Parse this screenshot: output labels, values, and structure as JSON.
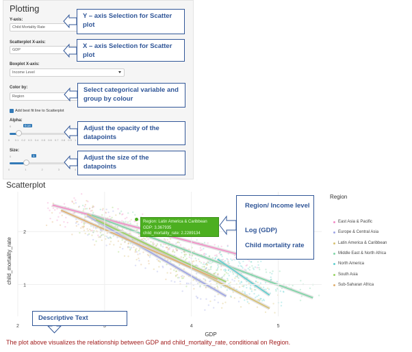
{
  "panel": {
    "title": "Plotting",
    "y_axis": {
      "label": "Y-axis:",
      "value": "Child Mortality Rate"
    },
    "scatter_x": {
      "label": "Scatterplot X-axis:",
      "value": "GDP"
    },
    "boxplot_x": {
      "label": "Boxplot X-axis:",
      "value": "Income Level"
    },
    "color_by": {
      "label": "Color by:",
      "value": "Region"
    },
    "checkbox": {
      "label": "Add best fit line to Scatterplot",
      "checked": true
    },
    "alpha": {
      "label": "Alpha:",
      "min": "0",
      "value": "0.14",
      "level": 0.14,
      "ticks": [
        "0",
        "0.1",
        "0.2",
        "0.3",
        "0.4",
        "0.5",
        "0.6",
        "0.7",
        "0.8",
        "0.9",
        "1"
      ]
    },
    "size": {
      "label": "Size:",
      "min": "0",
      "value": "1",
      "level": 0.25,
      "ticks": [
        "0",
        "1",
        "2",
        "3",
        "4"
      ]
    }
  },
  "callouts": {
    "y_axis": "Y – axis Selection for Scatter plot",
    "x_axis": "X – axis Selection for Scatter plot",
    "color": "Select categorical variable and group by colour",
    "opacity": "Adjust the opacity of the datapoints",
    "size": "Adjust the size of the datapoints",
    "region_income": "Region/ Income level",
    "log_gdp": "Log (GDP)",
    "child_mortality": "Child mortality rate",
    "descriptive": "Descriptive Text"
  },
  "section_title": "Scatterplot",
  "tooltip": {
    "line1": "Region: Latin America & Caribbean",
    "line2": "GDP: 3.367935",
    "line3": "child_mortality_rate: 2.2289134"
  },
  "caption": "The plot above visualizes the relationship between GDP and child_mortality_rate, conditional on Region.",
  "chart_data": {
    "type": "scatter",
    "xlabel": "GDP",
    "ylabel": "child_mortality_rate",
    "xlim": [
      2,
      5.5
    ],
    "ylim": [
      0.4,
      2.75
    ],
    "xticks": [
      "2",
      "3",
      "4",
      "5"
    ],
    "yticks": [
      "1",
      "2"
    ],
    "legend_title": "Region",
    "legend_position": "right",
    "series": [
      {
        "name": "East Asia & Pacific",
        "color": "#f28fc7",
        "line": [
          [
            2.4,
            2.5
          ],
          [
            4.7,
            1.5
          ]
        ]
      },
      {
        "name": "Europe & Central Asia",
        "color": "#9fa6e6",
        "line": [
          [
            2.8,
            2.3
          ],
          [
            4.4,
            0.78
          ]
        ]
      },
      {
        "name": "Latin America & Caribbean",
        "color": "#d7c070",
        "line": [
          [
            2.8,
            2.33
          ],
          [
            4.9,
            0.55
          ]
        ]
      },
      {
        "name": "Middle East & North Africa",
        "color": "#80d6a8",
        "line": [
          [
            2.85,
            2.31
          ],
          [
            5.4,
            0.75
          ]
        ]
      },
      {
        "name": "North America",
        "color": "#62d0d0",
        "line": [
          [
            4.3,
            1.48
          ],
          [
            4.9,
            0.8
          ]
        ]
      },
      {
        "name": "South Asia",
        "color": "#9ad465",
        "line": [
          [
            2.9,
            2.22
          ],
          [
            4.4,
            1.05
          ]
        ]
      },
      {
        "name": "Sub-Saharan Africa",
        "color": "#e0b070",
        "line": [
          [
            2.5,
            2.4
          ],
          [
            4.3,
            1.1
          ]
        ]
      }
    ]
  }
}
